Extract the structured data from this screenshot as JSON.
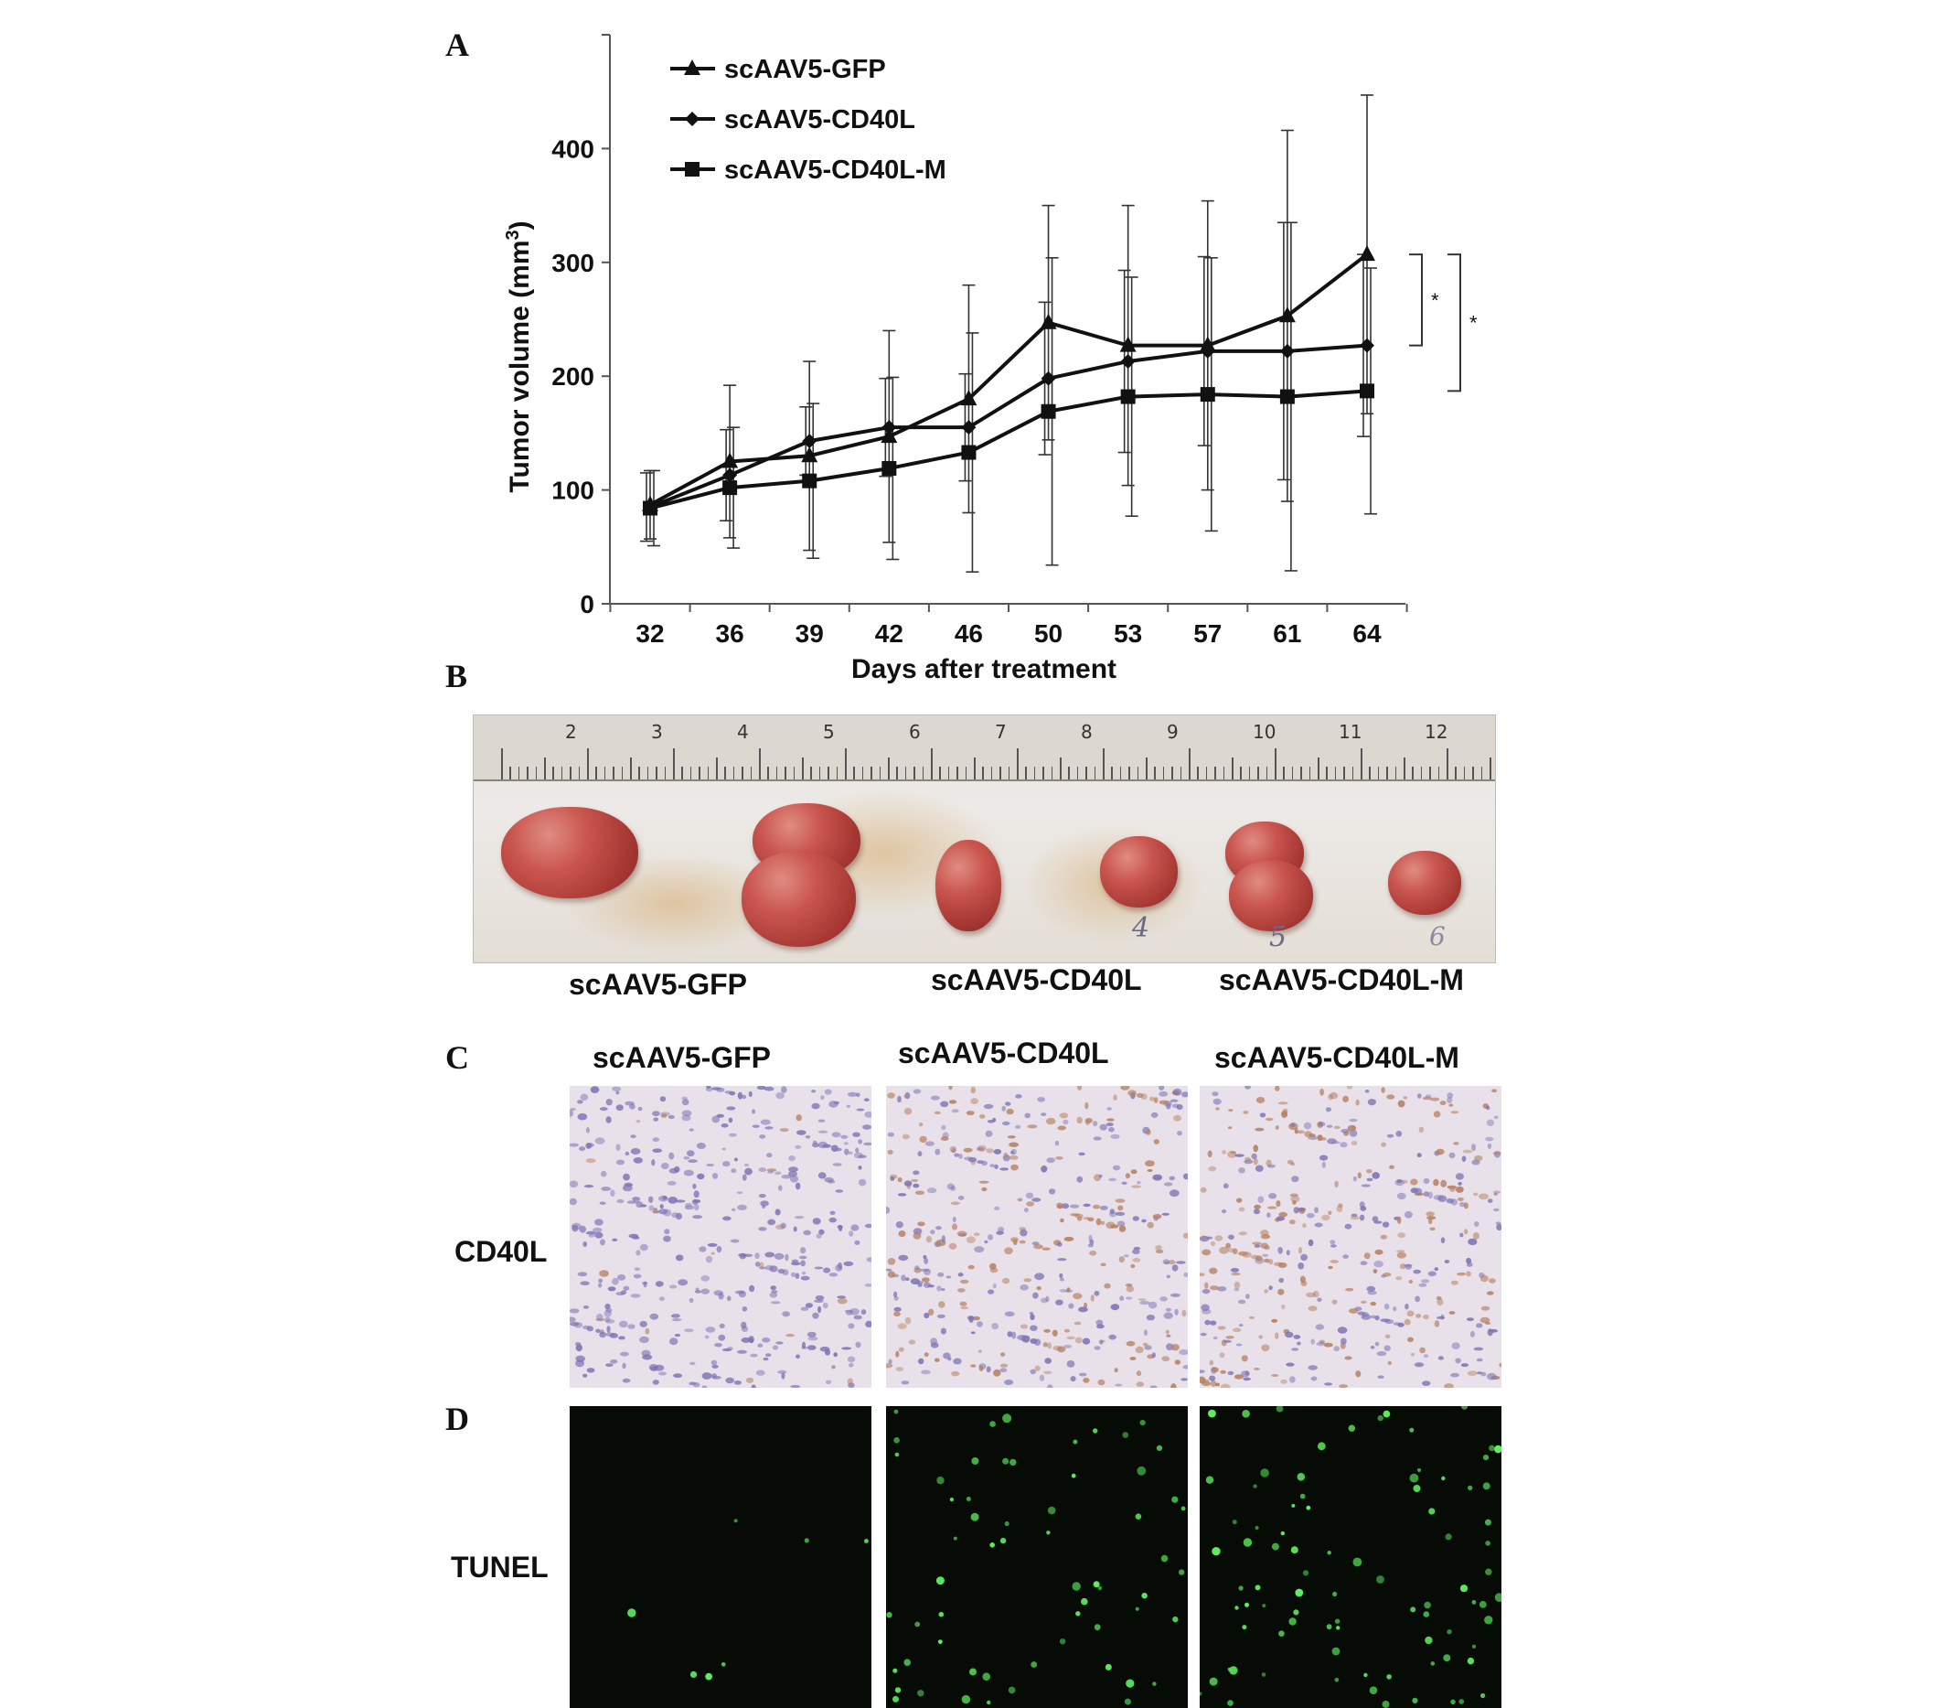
{
  "panels": {
    "a": "A",
    "b": "B",
    "c": "C",
    "d": "D"
  },
  "chart_data": {
    "type": "line",
    "categories": [
      "32",
      "36",
      "39",
      "42",
      "46",
      "50",
      "53",
      "57",
      "61",
      "64"
    ],
    "xlabel": "Days after treatment",
    "ylabel": "Tumor volume (mm3)",
    "ylim": [
      0,
      500
    ],
    "yticks": [
      0,
      100,
      200,
      300,
      400
    ],
    "legend_position": "top-left",
    "grid": false,
    "series": [
      {
        "name": "scAAV5-GFP",
        "marker": "triangle",
        "values": [
          87,
          125,
          130,
          147,
          180,
          247,
          227,
          227,
          253,
          307
        ],
        "errors": [
          30,
          67,
          83,
          93,
          100,
          103,
          123,
          127,
          163,
          140
        ]
      },
      {
        "name": "scAAV5-CD40L",
        "marker": "diamond",
        "values": [
          85,
          113,
          143,
          155,
          155,
          198,
          213,
          222,
          222,
          227
        ],
        "errors": [
          30,
          40,
          30,
          43,
          47,
          67,
          80,
          83,
          113,
          80
        ]
      },
      {
        "name": "scAAV5-CD40L-M",
        "marker": "square",
        "values": [
          84,
          102,
          108,
          119,
          133,
          169,
          182,
          184,
          182,
          187
        ],
        "errors": [
          33,
          53,
          68,
          80,
          105,
          135,
          105,
          120,
          153,
          108
        ]
      }
    ],
    "significance": [
      {
        "label": "*",
        "from_y": 307,
        "to_y": 227
      },
      {
        "label": "*",
        "from_y": 307,
        "to_y": 187
      }
    ]
  },
  "panel_b": {
    "labels": [
      "scAAV5-GFP",
      "scAAV5-CD40L",
      "scAAV5-CD40L-M"
    ],
    "ruler_numbers": [
      "2",
      "3",
      "4",
      "5",
      "6",
      "7",
      "8",
      "9",
      "10",
      "11",
      "12"
    ],
    "sample_marks": [
      "4",
      "5",
      "6"
    ]
  },
  "panel_c": {
    "column_labels": [
      "scAAV5-GFP",
      "scAAV5-CD40L",
      "scAAV5-CD40L-M"
    ],
    "row_label": "CD40L"
  },
  "panel_d": {
    "row_label": "TUNEL",
    "positive_cell_counts": [
      7,
      60,
      85
    ]
  },
  "colors": {
    "line": "#111111",
    "ihc_background": "#e9e1ea",
    "hematoxylin_nuclei": "#7d74b4",
    "dab_nuclei": "#b57f5f",
    "tunel_background": "#060b06",
    "tunel_positive": "#5df05d"
  }
}
